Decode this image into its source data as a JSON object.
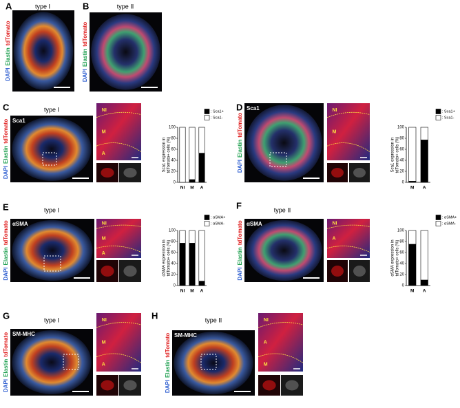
{
  "stain_label": [
    "DAPI",
    "Elastin",
    "tdTomato"
  ],
  "panels": [
    {
      "letter": "A",
      "title": "type I"
    },
    {
      "letter": "B",
      "title": "type II"
    },
    {
      "letter": "C",
      "title": "type I",
      "marker": "Sca1",
      "regions": [
        "NI",
        "M",
        "A"
      ]
    },
    {
      "letter": "D",
      "title": "type II",
      "marker": "Sca1",
      "regions": [
        "NI",
        "M"
      ]
    },
    {
      "letter": "E",
      "title": "type I",
      "marker": "αSMA",
      "regions": [
        "NI",
        "M",
        "A"
      ]
    },
    {
      "letter": "F",
      "title": "type II",
      "marker": "αSMA",
      "regions": [
        "NI",
        "A"
      ]
    },
    {
      "letter": "G",
      "title": "type I",
      "marker": "SM-MHC",
      "regions": [
        "NI",
        "M",
        "A"
      ]
    },
    {
      "letter": "H",
      "title": "type II",
      "marker": "SM-MHC",
      "regions": [
        "NI",
        "A",
        "M"
      ]
    }
  ],
  "chart_data": [
    {
      "type": "bar",
      "categories": [
        "NI",
        "M",
        "A"
      ],
      "ylabel": [
        "Sca1 expression in",
        "tdTomato+ cells (%)"
      ],
      "ylim": [
        0,
        100
      ],
      "yticks": [
        0,
        20,
        40,
        60,
        80,
        100
      ],
      "series": [
        {
          "name": ": Sca1+",
          "color": "#000000",
          "values": [
            0,
            5,
            53
          ]
        },
        {
          "name": ": Sca1-",
          "color": "#ffffff",
          "values": [
            100,
            95,
            47
          ]
        }
      ]
    },
    {
      "type": "bar",
      "categories": [
        "M",
        "A"
      ],
      "ylabel": [
        "Sca1 expression in",
        "tdTomato+ cells (%)"
      ],
      "ylim": [
        0,
        100
      ],
      "yticks": [
        0,
        20,
        40,
        60,
        80,
        100
      ],
      "series": [
        {
          "name": ": Sca1+",
          "color": "#000000",
          "values": [
            2,
            77
          ]
        },
        {
          "name": ": Sca1-",
          "color": "#ffffff",
          "values": [
            98,
            23
          ]
        }
      ]
    },
    {
      "type": "bar",
      "categories": [
        "NI",
        "M",
        "A"
      ],
      "ylabel": [
        "αSMA expression in",
        "tdTomato+ cells (%)"
      ],
      "ylim": [
        0,
        100
      ],
      "yticks": [
        0,
        20,
        40,
        60,
        80,
        100
      ],
      "series": [
        {
          "name": ": αSMA+",
          "color": "#000000",
          "values": [
            77,
            77,
            8
          ]
        },
        {
          "name": ": αSMA-",
          "color": "#ffffff",
          "values": [
            23,
            23,
            92
          ]
        }
      ]
    },
    {
      "type": "bar",
      "categories": [
        "M",
        "A"
      ],
      "ylabel": [
        "αSMA expression in",
        "tdTomato+ cells (%)"
      ],
      "ylim": [
        0,
        100
      ],
      "yticks": [
        0,
        20,
        40,
        60,
        80,
        100
      ],
      "series": [
        {
          "name": ": αSMA+",
          "color": "#000000",
          "values": [
            75,
            10
          ]
        },
        {
          "name": ": αSMA-",
          "color": "#ffffff",
          "values": [
            25,
            90
          ]
        }
      ]
    }
  ]
}
